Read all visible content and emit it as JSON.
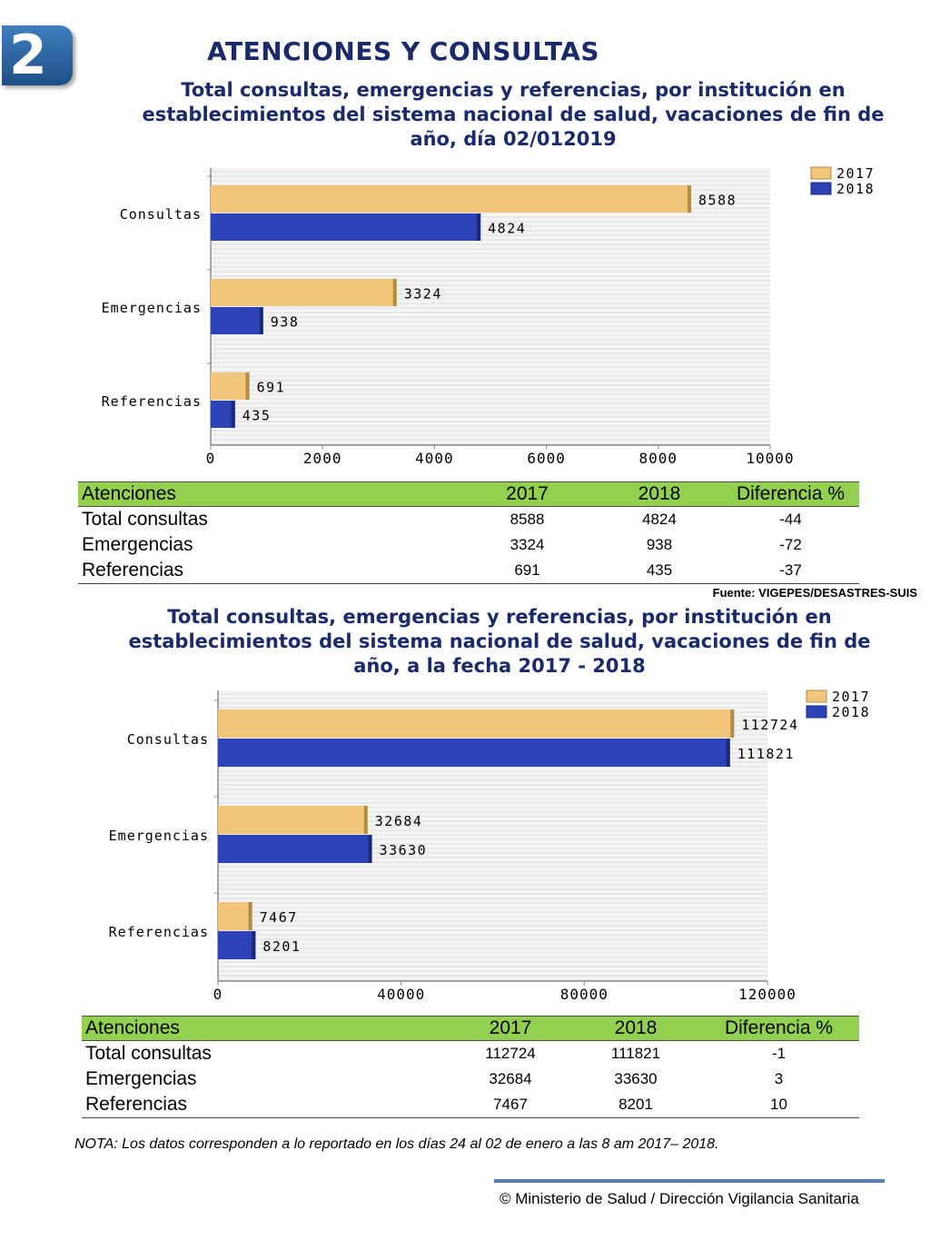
{
  "badge_number": "2",
  "header": {
    "title": "ATENCIONES Y CONSULTAS"
  },
  "colors": {
    "series_2017": "#f2c57c",
    "series_2018": "#2d44b8",
    "table_header": "#92d050",
    "title": "#1b2a6b"
  },
  "chart_data": [
    {
      "type": "bar",
      "orientation": "horizontal",
      "title": "Total consultas, emergencias y referencias, por institución en establecimientos del sistema nacional de salud, vacaciones de fin de año, día 02/012019",
      "categories": [
        "Consultas",
        "Emergencias",
        "Referencias"
      ],
      "series": [
        {
          "name": "2017",
          "values": [
            8588,
            3324,
            691
          ]
        },
        {
          "name": "2018",
          "values": [
            4824,
            938,
            435
          ]
        }
      ],
      "xlim": [
        0,
        10000
      ],
      "xticks": [
        "0",
        "2000",
        "4000",
        "6000",
        "8000",
        "10000"
      ],
      "grid": true,
      "legend": "top-right"
    },
    {
      "type": "bar",
      "orientation": "horizontal",
      "title": "Total consultas, emergencias y referencias, por institución en establecimientos del sistema nacional de salud, vacaciones de fin de año, a la fecha 2017 - 2018",
      "categories": [
        "Consultas",
        "Emergencias",
        "Referencias"
      ],
      "series": [
        {
          "name": "2017",
          "values": [
            112724,
            32684,
            7467
          ]
        },
        {
          "name": "2018",
          "values": [
            111821,
            33630,
            8201
          ]
        }
      ],
      "xlim": [
        0,
        120000
      ],
      "xticks": [
        "0",
        "40000",
        "80000",
        "120000"
      ],
      "grid": true,
      "legend": "top-right"
    }
  ],
  "table1": {
    "headers": [
      "Atenciones",
      "2017",
      "2018",
      "Diferencia %"
    ],
    "rows": [
      [
        "Total consultas",
        "8588",
        "4824",
        "-44"
      ],
      [
        "Emergencias",
        "3324",
        "938",
        "-72"
      ],
      [
        "Referencias",
        "691",
        "435",
        "-37"
      ]
    ]
  },
  "source": "Fuente: VIGEPES/DESASTRES-SUIS",
  "table2": {
    "headers": [
      "Atenciones",
      "2017",
      "2018",
      "Diferencia %"
    ],
    "rows": [
      [
        "Total consultas",
        "112724",
        "111821",
        "-1"
      ],
      [
        "Emergencias",
        "32684",
        "33630",
        "3"
      ],
      [
        "Referencias",
        "7467",
        "8201",
        "10"
      ]
    ]
  },
  "note": "NOTA: Los datos corresponden a lo reportado en los días 24 al 02 de enero a las 8 am 2017– 2018.",
  "footer": "© Ministerio de Salud / Dirección Vigilancia Sanitaria"
}
